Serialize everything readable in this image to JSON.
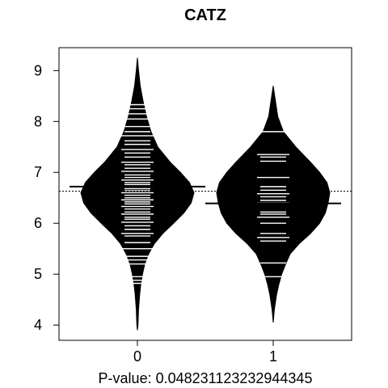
{
  "chart_data": {
    "type": "beanplot",
    "title": "CATZ",
    "xlabel": "P-value: 0.048231123232944345",
    "ylabel": "",
    "categories": [
      "0",
      "1"
    ],
    "ylim": [
      3.7,
      9.45
    ],
    "yticks": [
      4,
      5,
      6,
      7,
      8,
      9
    ],
    "overall_reference_line": 6.63,
    "series": [
      {
        "category": "0",
        "mean": 6.72,
        "min": 3.9,
        "max": 9.25,
        "density_profile": [
          [
            9.25,
            0.0
          ],
          [
            9.0,
            0.02
          ],
          [
            8.7,
            0.05
          ],
          [
            8.4,
            0.1
          ],
          [
            8.1,
            0.16
          ],
          [
            7.8,
            0.24
          ],
          [
            7.5,
            0.36
          ],
          [
            7.2,
            0.58
          ],
          [
            7.0,
            0.76
          ],
          [
            6.8,
            0.92
          ],
          [
            6.6,
            1.0
          ],
          [
            6.4,
            0.95
          ],
          [
            6.2,
            0.82
          ],
          [
            6.0,
            0.64
          ],
          [
            5.8,
            0.45
          ],
          [
            5.6,
            0.3
          ],
          [
            5.4,
            0.2
          ],
          [
            5.2,
            0.13
          ],
          [
            5.0,
            0.09
          ],
          [
            4.8,
            0.06
          ],
          [
            4.6,
            0.04
          ],
          [
            4.3,
            0.02
          ],
          [
            4.0,
            0.01
          ],
          [
            3.9,
            0.0
          ]
        ],
        "observations": [
          4.82,
          4.88,
          4.95,
          5.2,
          5.28,
          5.35,
          5.5,
          5.62,
          5.75,
          5.8,
          5.88,
          5.95,
          6.02,
          6.08,
          6.12,
          6.18,
          6.22,
          6.28,
          6.33,
          6.38,
          6.42,
          6.46,
          6.5,
          6.55,
          6.6,
          6.64,
          6.68,
          6.72,
          6.76,
          6.8,
          6.85,
          6.9,
          6.95,
          7.02,
          7.08,
          7.15,
          7.2,
          7.3,
          7.38,
          7.45,
          7.55,
          7.62,
          7.72,
          7.8,
          7.9,
          8.05,
          8.15,
          8.25,
          8.33
        ]
      },
      {
        "category": "1",
        "mean": 6.39,
        "min": 4.05,
        "max": 8.7,
        "density_profile": [
          [
            8.7,
            0.0
          ],
          [
            8.4,
            0.04
          ],
          [
            8.1,
            0.08
          ],
          [
            7.8,
            0.18
          ],
          [
            7.5,
            0.4
          ],
          [
            7.2,
            0.66
          ],
          [
            7.0,
            0.82
          ],
          [
            6.8,
            0.95
          ],
          [
            6.6,
            1.0
          ],
          [
            6.4,
            0.97
          ],
          [
            6.2,
            0.92
          ],
          [
            6.0,
            0.82
          ],
          [
            5.8,
            0.66
          ],
          [
            5.6,
            0.46
          ],
          [
            5.4,
            0.3
          ],
          [
            5.2,
            0.22
          ],
          [
            5.0,
            0.15
          ],
          [
            4.8,
            0.1
          ],
          [
            4.6,
            0.06
          ],
          [
            4.3,
            0.02
          ],
          [
            4.05,
            0.0
          ]
        ],
        "observations": [
          4.95,
          5.22,
          5.65,
          5.72,
          5.8,
          6.0,
          6.12,
          6.18,
          6.22,
          6.4,
          6.45,
          6.52,
          6.58,
          6.65,
          6.72,
          6.9,
          7.22,
          7.3,
          7.35,
          7.8
        ]
      }
    ]
  }
}
